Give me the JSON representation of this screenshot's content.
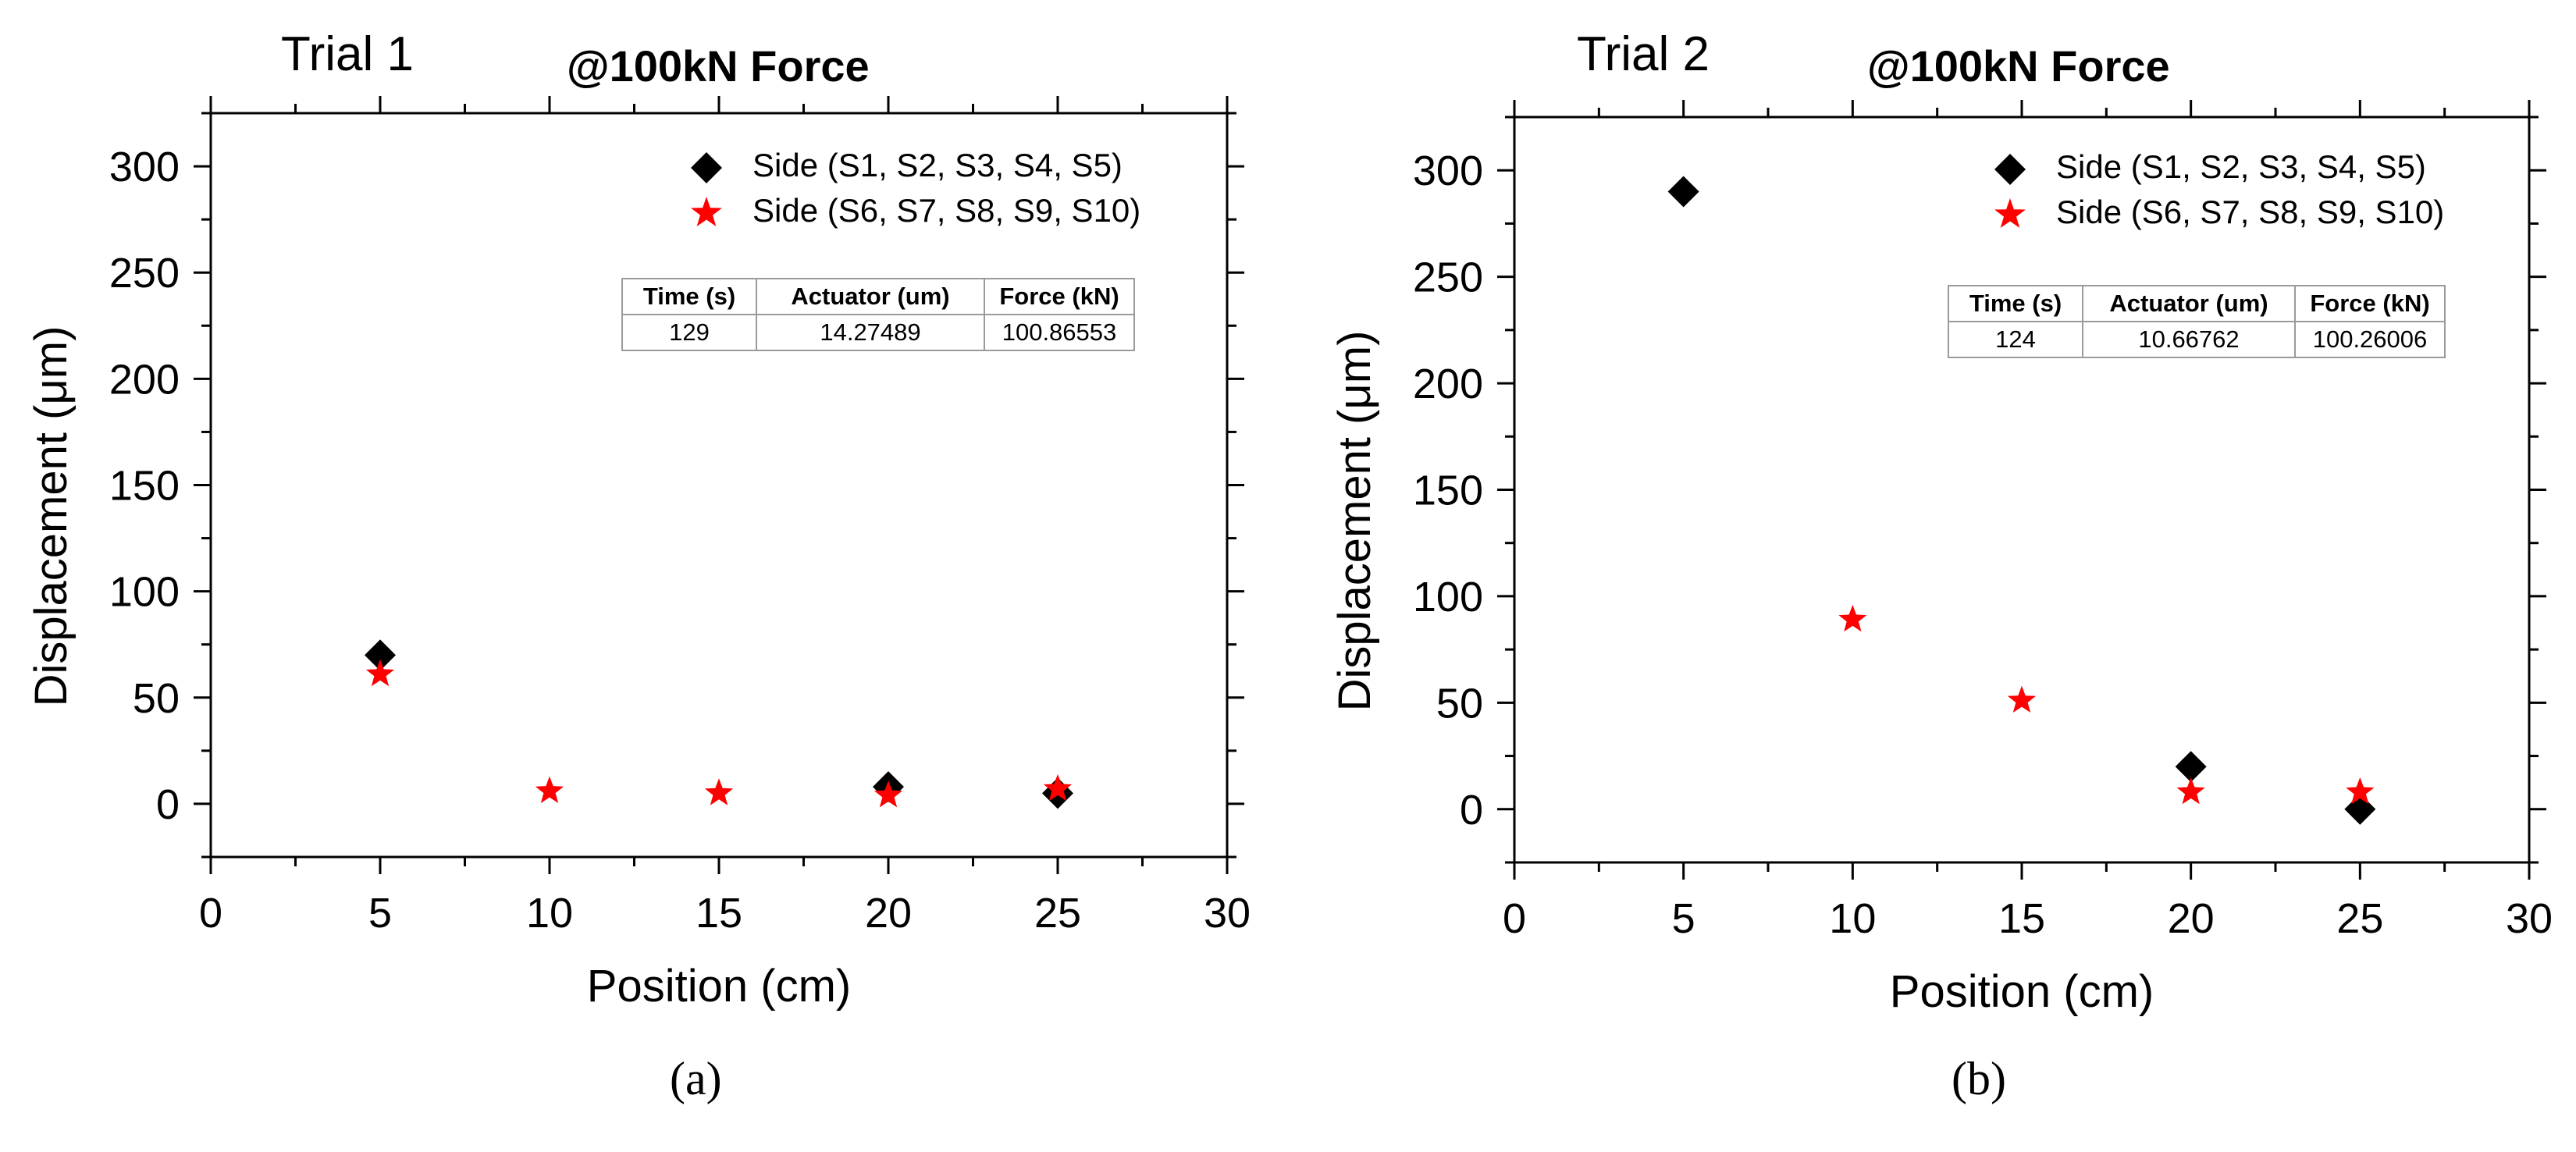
{
  "chart_data": [
    {
      "type": "scatter",
      "panel_label": "(a)",
      "trial": "Trial 1",
      "title": "@100kN Force",
      "xlabel": "Position (cm)",
      "ylabel": "Displacement (μm)",
      "xlim": [
        0,
        30
      ],
      "ylim": [
        -25,
        325
      ],
      "xticks": [
        0,
        5,
        10,
        15,
        20,
        25,
        30
      ],
      "yticks": [
        0,
        50,
        100,
        150,
        200,
        250,
        300
      ],
      "legend_position": "top-right",
      "series": [
        {
          "name": "Side (S1, S2, S3, S4, S5)",
          "marker": "diamond",
          "color": "#000000",
          "x": [
            5,
            20,
            25
          ],
          "y": [
            70,
            8,
            5
          ]
        },
        {
          "name": "Side (S6, S7, S8, S9, S10)",
          "marker": "star",
          "color": "#ff0000",
          "x": [
            5,
            10,
            15,
            20,
            25
          ],
          "y": [
            61,
            6,
            5,
            4,
            7
          ]
        }
      ],
      "table": {
        "headers": [
          "Time (s)",
          "Actuator (um)",
          "Force (kN)"
        ],
        "row": [
          "129",
          "14.27489",
          "100.86553"
        ]
      }
    },
    {
      "type": "scatter",
      "panel_label": "(b)",
      "trial": "Trial 2",
      "title": "@100kN Force",
      "xlabel": "Position (cm)",
      "ylabel": "Displacement (μm)",
      "xlim": [
        0,
        30
      ],
      "ylim": [
        -25,
        325
      ],
      "xticks": [
        0,
        5,
        10,
        15,
        20,
        25,
        30
      ],
      "yticks": [
        0,
        50,
        100,
        150,
        200,
        250,
        300
      ],
      "legend_position": "top-right",
      "series": [
        {
          "name": "Side (S1, S2, S3, S4, S5)",
          "marker": "diamond",
          "color": "#000000",
          "x": [
            5,
            20,
            25
          ],
          "y": [
            290,
            20,
            0
          ]
        },
        {
          "name": "Side (S6, S7, S8, S9, S10)",
          "marker": "star",
          "color": "#ff0000",
          "x": [
            10,
            15,
            20,
            25
          ],
          "y": [
            89,
            51,
            8,
            8
          ]
        }
      ],
      "table": {
        "headers": [
          "Time (s)",
          "Actuator (um)",
          "Force (kN)"
        ],
        "row": [
          "124",
          "10.66762",
          "100.26006"
        ]
      }
    }
  ]
}
